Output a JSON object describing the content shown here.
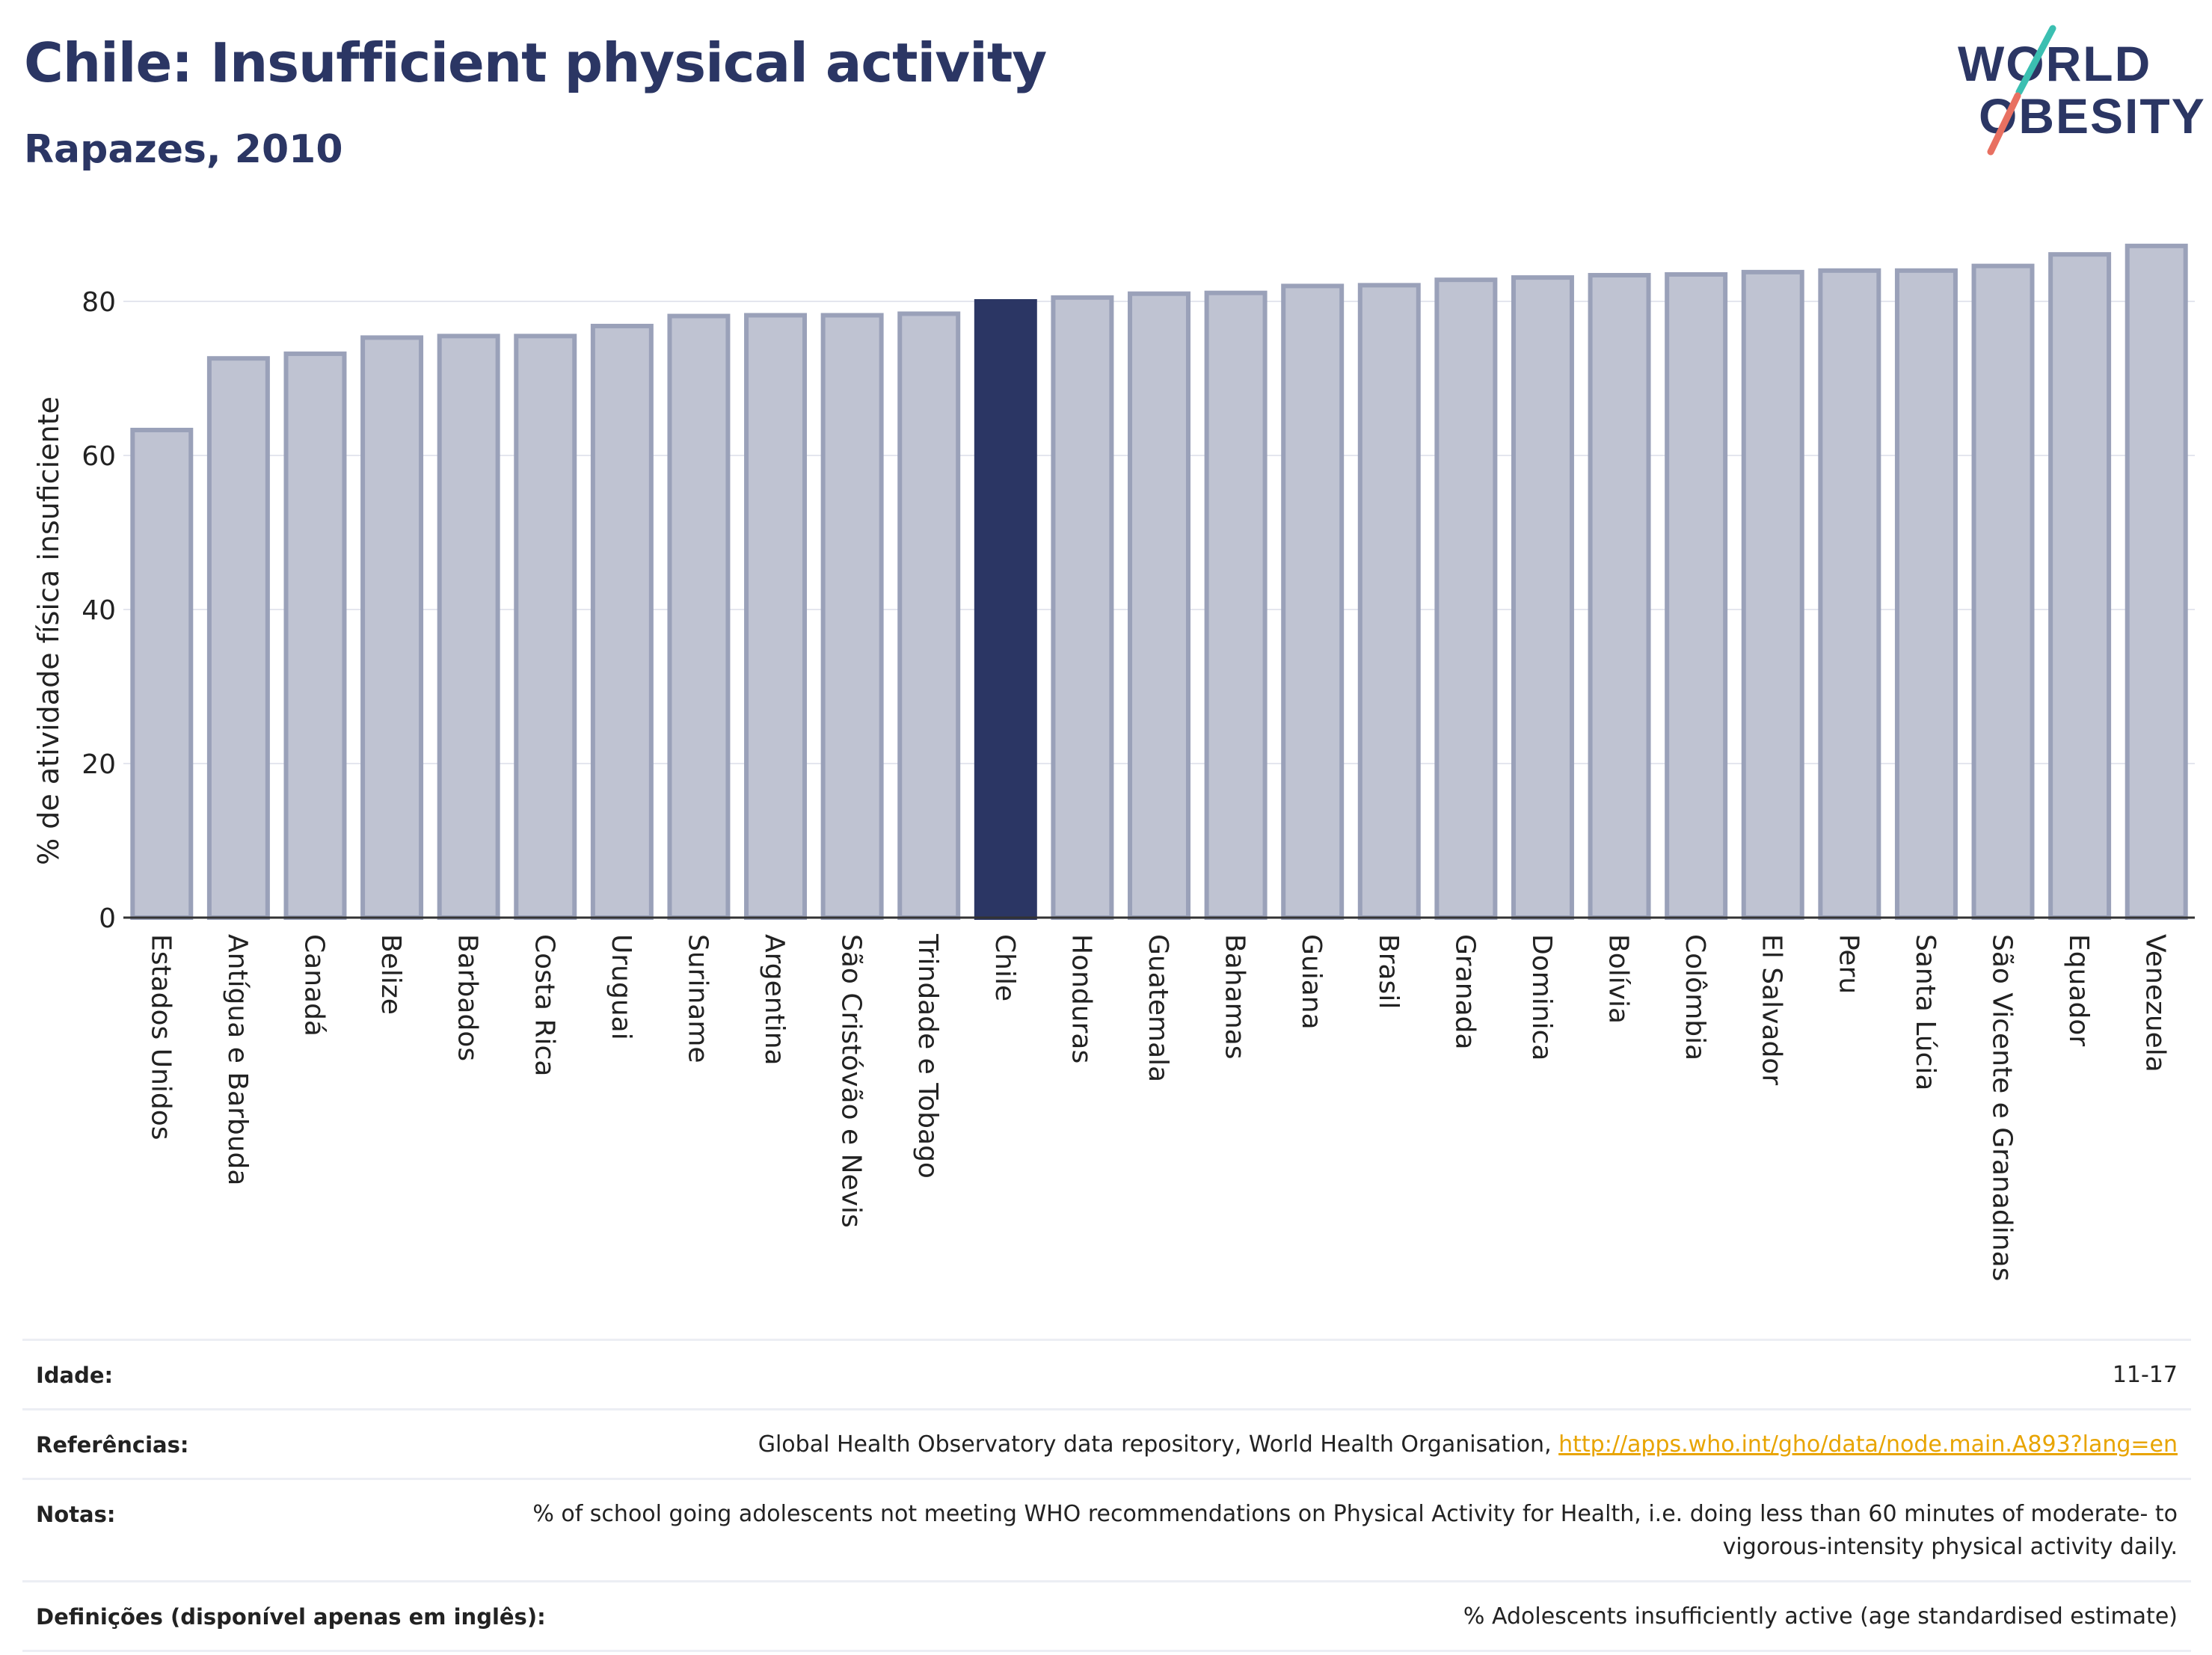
{
  "title": "Chile: Insufficient physical activity",
  "subtitle": "Rapazes, 2010",
  "logo": {
    "line1": "WORLD",
    "line2": "OBESITY"
  },
  "colors": {
    "bar": "#bfc3d2",
    "bar_border": "#9aa1b9",
    "highlight": "#2b3664",
    "title": "#2b3664",
    "grid": "#e4e6ee",
    "link": "#e8a400"
  },
  "chart_data": {
    "type": "bar",
    "ylabel": "% de atividade física insuficiente",
    "xlabel": "",
    "ylim": [
      0,
      90
    ],
    "yticks": [
      0,
      20,
      40,
      60,
      80
    ],
    "grid": true,
    "highlight": "Chile",
    "categories": [
      "Estados Unidos",
      "Antígua e Barbuda",
      "Canadá",
      "Belize",
      "Barbados",
      "Costa Rica",
      "Uruguai",
      "Suriname",
      "Argentina",
      "São Cristóvão e Nevis",
      "Trindade e Tobago",
      "Chile",
      "Honduras",
      "Guatemala",
      "Bahamas",
      "Guiana",
      "Brasil",
      "Granada",
      "Dominica",
      "Bolívia",
      "Colômbia",
      "El Salvador",
      "Peru",
      "Santa Lúcia",
      "São Vicente e Granadinas",
      "Equador",
      "Venezuela"
    ],
    "values": [
      63.3,
      72.6,
      73.2,
      75.3,
      75.5,
      75.5,
      76.8,
      78.1,
      78.2,
      78.2,
      78.4,
      80.0,
      80.5,
      81.0,
      81.1,
      82.0,
      82.1,
      82.8,
      83.1,
      83.4,
      83.5,
      83.8,
      84.0,
      84.0,
      84.6,
      86.1,
      87.2
    ]
  },
  "info": {
    "age_label": "Idade:",
    "age_value": "11-17",
    "references_label": "Referências:",
    "references_text": "Global Health Observatory data repository, World Health Organisation, ",
    "references_link": "http://apps.who.int/gho/data/node.main.A893?lang=en",
    "notes_label": "Notas:",
    "notes_text": "% of school going adolescents not meeting WHO recommendations on Physical Activity for Health, i.e. doing less than 60 minutes of moderate- to vigorous-intensity physical activity daily.",
    "definitions_label": "Definições (disponível apenas em inglês):",
    "definitions_text": "% Adolescents insufficiently active (age standardised estimate)"
  }
}
